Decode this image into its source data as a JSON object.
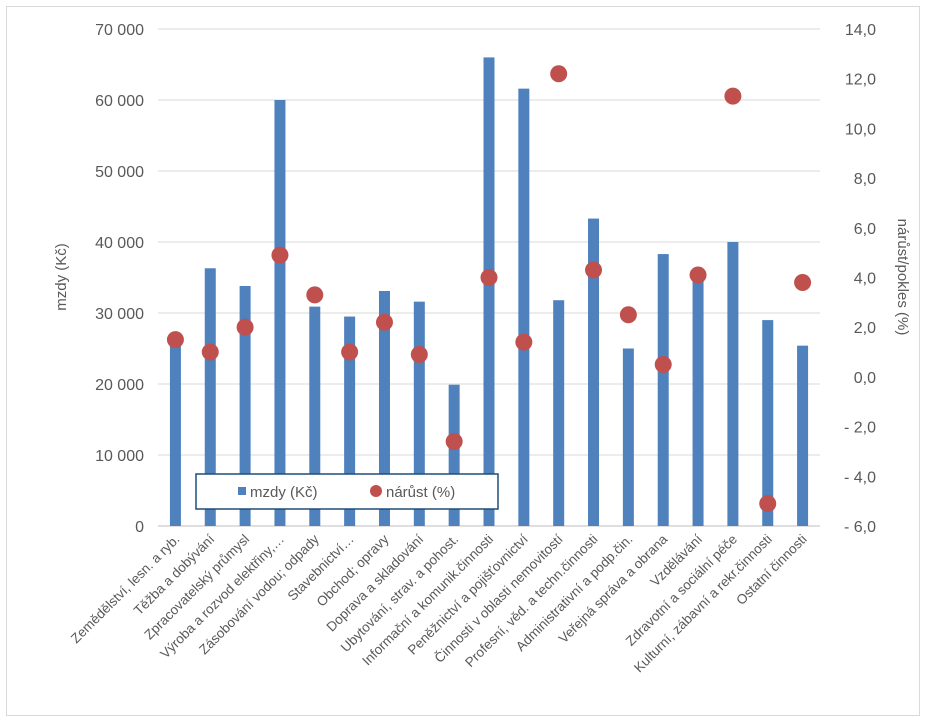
{
  "chart_data": {
    "type": "bar",
    "categories": [
      "Zemědělství, lesn. a ryb.",
      "Těžba a dobývání",
      "Zpracovatelský průmysl",
      "Výroba a rozvod elektřiny,…",
      "Zásobování vodou; odpady",
      "Stavebnictví…",
      "Obchod; opravy",
      "Doprava a skladování",
      "Ubytování, strav. a pohost.",
      "Informační a komunik.činnosti",
      "Peněžnictví a pojišťovnictví",
      "Činnosti v oblasti nemovitostí",
      "Profesní, věd. a techn.činnosti",
      "Administrativní a podp.čin.",
      "Veřejná správa a obrana",
      "Vzdělávání",
      "Zdravotní a sociální péče",
      "Kulturní, zábavní a rekr.činnosti",
      "Ostatní činnosti"
    ],
    "series": [
      {
        "name": "mzdy (Kč)",
        "kind": "bar",
        "axis": "left",
        "color": "#4f81bd",
        "values": [
          25800,
          36300,
          33800,
          60000,
          30900,
          29500,
          33100,
          31600,
          19900,
          66000,
          61600,
          31800,
          43300,
          25000,
          38300,
          36000,
          40000,
          29000,
          25400
        ]
      },
      {
        "name": "nárůst (%)",
        "kind": "scatter",
        "axis": "right",
        "color": "#c0504d",
        "values": [
          1.5,
          1.0,
          2.0,
          4.9,
          3.3,
          1.0,
          2.2,
          0.9,
          -2.6,
          4.0,
          1.4,
          12.2,
          4.3,
          2.5,
          0.5,
          4.1,
          11.3,
          -5.1,
          3.8
        ]
      }
    ],
    "ylabel": "mzdy (Kč)",
    "y2label": "nárůst/pokles (%)",
    "ylim": [
      0,
      70000
    ],
    "y2lim": [
      -6,
      14
    ],
    "yticks": [
      "0",
      "10 000",
      "20 000",
      "30 000",
      "40 000",
      "50 000",
      "60 000",
      "70 000"
    ],
    "y2ticks": [
      "- 6,0",
      "- 4,0",
      "- 2,0",
      "0,0",
      "2,0",
      "4,0",
      "6,0",
      "8,0",
      "10,0",
      "12,0",
      "14,0"
    ],
    "grid": true,
    "legend_position": "bottom-left inside"
  }
}
